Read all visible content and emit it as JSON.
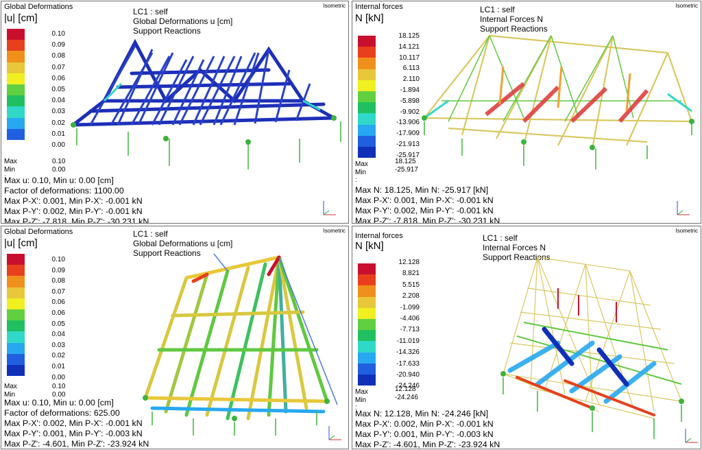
{
  "colors": {
    "scale": [
      "#c8102e",
      "#e8401c",
      "#f0901c",
      "#e8c83a",
      "#f0f020",
      "#60d040",
      "#20c060",
      "#30d8c8",
      "#28a8f0",
      "#2060e0",
      "#1030b8",
      "#102080"
    ]
  },
  "panels": [
    {
      "legend_title": "Global Deformations",
      "legend_unit": "|u| [cm]",
      "view_label": "Isometric",
      "header": [
        "LC1 : self",
        "Global Deformations u [cm]",
        "Support Reactions"
      ],
      "ticks": [
        "0.10",
        "0.09",
        "0.08",
        "0.07",
        "0.06",
        "0.05",
        "0.04",
        "0.03",
        "0.02",
        "0.01",
        "0.00"
      ],
      "max_label": "Max :",
      "max_value": "0.10",
      "min_label": "Min :",
      "min_value": "0.00",
      "results": [
        "Max u: 0.10, Min u: 0.00 [cm]",
        "Factor of deformations: 1100.00",
        "Max P-X': 0.001, Min P-X': -0.001 kN",
        "Max P-Y': 0.002, Min P-Y': -0.001 kN",
        "Max P-Z': -7.818, Min P-Z': -30.231 kN"
      ]
    },
    {
      "legend_title": "Internal forces",
      "legend_unit": "N [kN]",
      "view_label": "Isometric",
      "header": [
        "LC1 : self",
        "Internal Forces N",
        "Support Reactions"
      ],
      "ticks": [
        "18.125",
        "14.121",
        "10.117",
        "6.113",
        "2.110",
        "-1.894",
        "-5.898",
        "-9.902",
        "-13.906",
        "-17.909",
        "-21.913",
        "-25.917"
      ],
      "max_label": "Max :",
      "max_value": "18.125",
      "min_label": "Min :",
      "min_value": "-25.917",
      "results": [
        "Max N: 18.125, Min N: -25.917 [kN]",
        "Max P-X': 0.001, Min P-X': -0.001 kN",
        "Max P-Y': 0.002, Min P-Y': -0.001 kN",
        "Max P-Z': -7.818, Min P-Z': -30.231 kN"
      ]
    },
    {
      "legend_title": "Global Deformations",
      "legend_unit": "|u| [cm]",
      "view_label": "Isometric",
      "header": [
        "LC1 : self",
        "Global Deformations u [cm]",
        "Support Reactions"
      ],
      "ticks": [
        "0.10",
        "0.09",
        "0.08",
        "0.07",
        "0.06",
        "0.06",
        "0.05",
        "0.04",
        "0.03",
        "0.02",
        "0.01",
        "0.00"
      ],
      "max_label": "Max :",
      "max_value": "0.10",
      "min_label": "Min :",
      "min_value": "0.00",
      "results": [
        "Max u: 0.10, Min u: 0.00 [cm]",
        "Factor of deformations: 625.00",
        "Max P-X': 0.002, Min P-X': -0.001 kN",
        "Max P-Y': 0.001, Min P-Y': -0.003 kN",
        "Max P-Z': -4.601, Min P-Z': -23.924 kN"
      ]
    },
    {
      "legend_title": "Internal forces",
      "legend_unit": "N [kN]",
      "view_label": "Isometric",
      "header": [
        "LC1 : self",
        "Internal Forces N",
        "Support Reactions"
      ],
      "ticks": [
        "12.128",
        "8.821",
        "5.515",
        "2.208",
        "-1.099",
        "-4.406",
        "-7.713",
        "-11.019",
        "-14.326",
        "-17.633",
        "-20.940",
        "-24.246"
      ],
      "max_label": "Max :",
      "max_value": "12.128",
      "min_label": "Min :",
      "min_value": "-24.246",
      "results": [
        "Max N: 12.128, Min N: -24.246 [kN]",
        "Max P-X': 0.002, Min P-X': -0.001 kN",
        "Max P-Y': 0.001, Min P-Y': -0.003 kN",
        "Max P-Z': -4.601, Min P-Z': -23.924 kN"
      ]
    }
  ]
}
